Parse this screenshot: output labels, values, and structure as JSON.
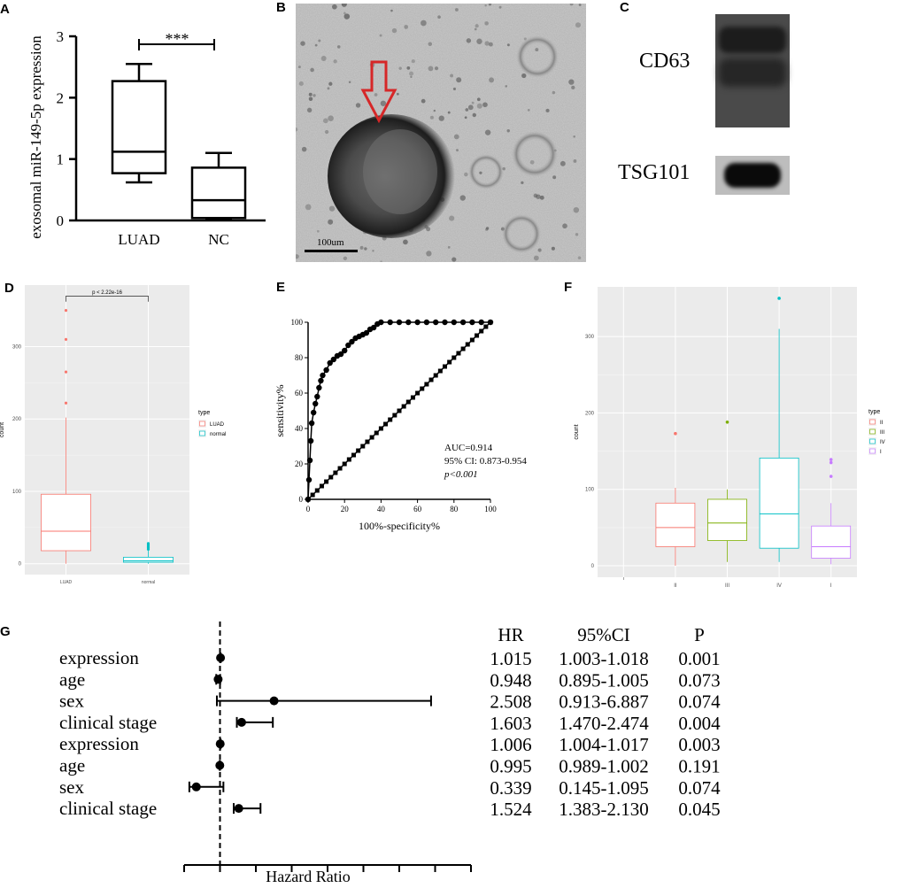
{
  "panels": {
    "A": {
      "label": "A"
    },
    "B": {
      "label": "B"
    },
    "C": {
      "label": "C"
    },
    "D": {
      "label": "D"
    },
    "E": {
      "label": "E"
    },
    "F": {
      "label": "F"
    },
    "G": {
      "label": "G"
    }
  },
  "microscopy": {
    "scale_bar_label": "100um"
  },
  "western_blot": {
    "bands": [
      "CD63",
      "TSG101"
    ]
  },
  "colors": {
    "LUAD": "#f8766d",
    "normal": "#00bfc4",
    "II": "#f8766d",
    "III": "#7cae00",
    "IV": "#00bfc4",
    "I": "#c77cff",
    "arrow": "#d62728",
    "ggbg": "#ebebeb"
  },
  "chart_data": [
    {
      "id": "A",
      "type": "box",
      "ylabel": "exosomal miR-149-5p expression",
      "yticks": [
        0,
        1,
        2,
        3
      ],
      "ylim": [
        0,
        3
      ],
      "categories": [
        "LUAD",
        "NC"
      ],
      "boxes": [
        {
          "name": "LUAD",
          "min": 0.62,
          "q1": 0.77,
          "median": 1.12,
          "q3": 2.27,
          "max": 2.55
        },
        {
          "name": "NC",
          "min": 0.02,
          "q1": 0.04,
          "median": 0.33,
          "q3": 0.86,
          "max": 1.1
        }
      ],
      "annotation": "***"
    },
    {
      "id": "D",
      "type": "box",
      "xlabel": "",
      "ylabel": "count",
      "yticks": [
        0,
        100,
        200,
        300
      ],
      "ylim": [
        -15,
        385
      ],
      "categories": [
        "LUAD",
        "normal"
      ],
      "annotation": "p < 2.22e-16",
      "legend_title": "type",
      "legend": [
        "LUAD",
        "normal"
      ],
      "boxes": [
        {
          "name": "LUAD",
          "min": 0,
          "q1": 18,
          "median": 45,
          "q3": 96,
          "max": 202,
          "outliers": [
            222,
            265,
            310,
            350
          ]
        },
        {
          "name": "normal",
          "min": 0,
          "q1": 2,
          "median": 4,
          "q3": 9,
          "max": 18,
          "outliers": [
            20,
            22,
            24,
            26,
            28
          ]
        }
      ]
    },
    {
      "id": "E",
      "type": "line",
      "xlabel": "100%-specificity%",
      "ylabel": "sensitivity%",
      "xticks": [
        0,
        20,
        40,
        60,
        80,
        100
      ],
      "yticks": [
        0,
        20,
        40,
        60,
        80,
        100
      ],
      "xlim": [
        0,
        100
      ],
      "ylim": [
        0,
        100
      ],
      "series": [
        {
          "x": [
            0,
            0.5,
            1,
            1.5,
            2,
            3,
            4,
            5,
            6,
            7,
            8,
            10,
            12,
            14,
            16,
            18,
            20,
            22,
            24,
            26,
            28,
            30,
            32,
            34,
            36,
            38,
            40,
            45,
            50,
            55,
            60,
            65,
            70,
            75,
            80,
            85,
            90,
            95,
            100
          ],
          "y": [
            0,
            11,
            22,
            33,
            43,
            49,
            54,
            58,
            63,
            67,
            70,
            73,
            77,
            79,
            81,
            82,
            84,
            87,
            89,
            91,
            92,
            93,
            94,
            96,
            97,
            99,
            100,
            100,
            100,
            100,
            100,
            100,
            100,
            100,
            100,
            100,
            100,
            100,
            100
          ]
        },
        {
          "x": [
            0,
            100
          ],
          "y": [
            0,
            100
          ]
        }
      ],
      "annotations": [
        "AUC=0.914",
        "95% CI: 0.873-0.954",
        "p<0.001"
      ]
    },
    {
      "id": "F",
      "type": "box",
      "xlabel": "",
      "ylabel": "count",
      "yticks": [
        0,
        100,
        200,
        300
      ],
      "ylim": [
        -15,
        365
      ],
      "categories": [
        "II",
        "III",
        "IV",
        "I"
      ],
      "legend_title": "type",
      "legend": [
        "II",
        "III",
        "IV",
        "I"
      ],
      "boxes": [
        {
          "name": "II",
          "min": 0,
          "q1": 25,
          "median": 50,
          "q3": 82,
          "max": 102,
          "outliers": [
            173
          ]
        },
        {
          "name": "III",
          "min": 5,
          "q1": 33,
          "median": 56,
          "q3": 87,
          "max": 100,
          "outliers": [
            188
          ]
        },
        {
          "name": "IV",
          "min": 5,
          "q1": 23,
          "median": 68,
          "q3": 141,
          "max": 310,
          "outliers": [
            350
          ]
        },
        {
          "name": "I",
          "min": 2,
          "q1": 10,
          "median": 25,
          "q3": 52,
          "max": 82,
          "outliers": [
            117,
            135,
            139
          ]
        }
      ]
    },
    {
      "id": "G",
      "type": "forest",
      "xlabel": "Hazard Ratio",
      "columns": [
        "HR",
        "95%CI",
        "P"
      ],
      "rows": [
        {
          "label": "expression",
          "hr": 1.015,
          "lo": 1.003,
          "hi": 1.018,
          "hr_text": "1.015",
          "ci_text": "1.003-1.018",
          "p_text": "0.001"
        },
        {
          "label": "age",
          "hr": 0.948,
          "lo": 0.895,
          "hi": 1.005,
          "hr_text": "0.948",
          "ci_text": "0.895-1.005",
          "p_text": "0.073"
        },
        {
          "label": "sex",
          "hr": 2.508,
          "lo": 0.913,
          "hi": 6.887,
          "hr_text": "2.508",
          "ci_text": "0.913-6.887",
          "p_text": "0.074"
        },
        {
          "label": "clinical stage",
          "hr": 1.603,
          "lo": 1.47,
          "hi": 2.474,
          "hr_text": "1.603",
          "ci_text": "1.470-2.474",
          "p_text": "0.004"
        },
        {
          "label": "expression",
          "hr": 1.006,
          "lo": 1.004,
          "hi": 1.017,
          "hr_text": "1.006",
          "ci_text": "1.004-1.017",
          "p_text": "0.003"
        },
        {
          "label": "age",
          "hr": 0.995,
          "lo": 0.989,
          "hi": 1.002,
          "hr_text": "0.995",
          "ci_text": "0.989-1.002",
          "p_text": "0.191"
        },
        {
          "label": "sex",
          "hr": 0.339,
          "lo": 0.145,
          "hi": 1.095,
          "hr_text": "0.339",
          "ci_text": "0.145-1.095",
          "p_text": "0.074"
        },
        {
          "label": "clinical stage",
          "hr": 1.524,
          "lo": 1.383,
          "hi": 2.13,
          "hr_text": "1.524",
          "ci_text": "1.383-2.130",
          "p_text": "0.045"
        }
      ],
      "reference_line": 1,
      "xlim": [
        0,
        8
      ]
    }
  ]
}
